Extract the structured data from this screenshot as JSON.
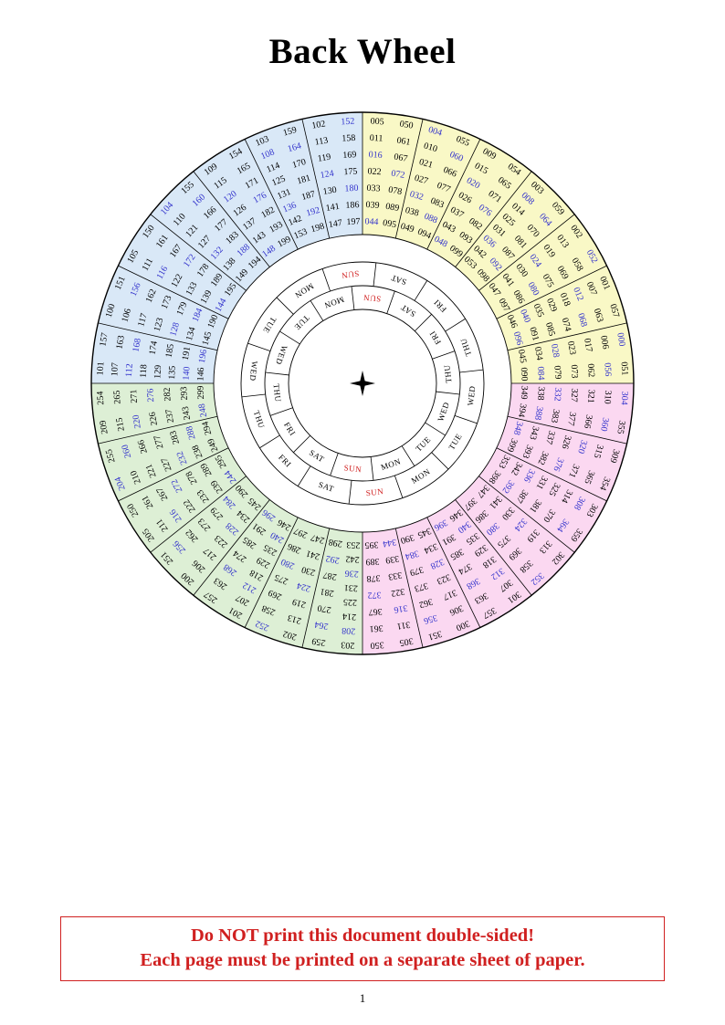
{
  "page": {
    "title": "Back Wheel",
    "page_number": "1",
    "warning_line1": "Do NOT print this document double-sided!",
    "warning_line2": "Each page must be printed on a separate sheet of paper."
  },
  "colors": {
    "quadrant_yellow": "#f9f8c6",
    "quadrant_pink": "#fbd8f1",
    "quadrant_green": "#ddefd5",
    "quadrant_blue": "#d9e8f7",
    "leap_year_text": "#3333cc",
    "common_year_text": "#000000",
    "sunday_text": "#d02020",
    "day_text": "#000000",
    "warning": "#d02020",
    "line": "#000000"
  },
  "wheel": {
    "day_ring_outer": [
      "SUN",
      "SAT",
      "FRI",
      "THU",
      "WED",
      "TUE",
      "MON",
      "SUN",
      "SAT",
      "FRI",
      "THU",
      "WED",
      "TUE",
      "MON"
    ],
    "day_ring_inner": [
      "SUN",
      "SAT",
      "FRI",
      "THU",
      "WED",
      "TUE",
      "MON",
      "SUN",
      "SAT",
      "FRI",
      "THU",
      "WED",
      "TUE",
      "MON"
    ],
    "sectors": [
      {
        "quadrant": "yellow",
        "columns": [
          [
            "005",
            "011",
            "016",
            "022",
            "033",
            "039",
            "044"
          ],
          [
            "050",
            "061",
            "067",
            "072",
            "078",
            "089",
            "095"
          ]
        ]
      },
      {
        "quadrant": "yellow",
        "columns": [
          [
            "004",
            "010",
            "021",
            "027",
            "032",
            "038",
            "049"
          ],
          [
            "055",
            "060",
            "066",
            "077",
            "083",
            "088",
            "094"
          ]
        ]
      },
      {
        "quadrant": "yellow",
        "columns": [
          [
            "009",
            "015",
            "020",
            "026",
            "037",
            "043",
            "048"
          ],
          [
            "054",
            "065",
            "071",
            "076",
            "082",
            "093",
            "099"
          ]
        ]
      },
      {
        "quadrant": "yellow",
        "columns": [
          [
            "003",
            "008",
            "014",
            "025",
            "031",
            "036",
            "042",
            "053"
          ],
          [
            "059",
            "064",
            "070",
            "081",
            "087",
            "092",
            "098"
          ]
        ]
      },
      {
        "quadrant": "yellow",
        "columns": [
          [
            "002",
            "013",
            "019",
            "024",
            "030",
            "041",
            "047"
          ],
          [
            "052",
            "058",
            "069",
            "075",
            "080",
            "086",
            "097"
          ]
        ]
      },
      {
        "quadrant": "yellow",
        "columns": [
          [
            "001",
            "007",
            "012",
            "018",
            "029",
            "035",
            "040",
            "046"
          ],
          [
            "057",
            "063",
            "068",
            "074",
            "085",
            "091",
            "096"
          ]
        ]
      },
      {
        "quadrant": "yellow",
        "columns": [
          [
            "000",
            "006",
            "017",
            "023",
            "028",
            "034",
            "045"
          ],
          [
            "051",
            "056",
            "062",
            "073",
            "079",
            "084",
            "090"
          ]
        ]
      },
      {
        "quadrant": "pink",
        "columns": [
          [
            "304",
            "310",
            "321",
            "327",
            "332",
            "338",
            "349"
          ],
          [
            "355",
            "360",
            "366",
            "377",
            "383",
            "388",
            "394"
          ]
        ]
      },
      {
        "quadrant": "pink",
        "columns": [
          [
            "309",
            "315",
            "320",
            "326",
            "337",
            "343",
            "348"
          ],
          [
            "354",
            "365",
            "371",
            "376",
            "382",
            "393",
            "399"
          ]
        ]
      },
      {
        "quadrant": "pink",
        "columns": [
          [
            "303",
            "308",
            "314",
            "325",
            "331",
            "336",
            "342",
            "353"
          ],
          [
            "359",
            "364",
            "370",
            "381",
            "387",
            "392",
            "398"
          ]
        ]
      },
      {
        "quadrant": "pink",
        "columns": [
          [
            "302",
            "313",
            "319",
            "324",
            "330",
            "341",
            "347"
          ],
          [
            "352",
            "358",
            "369",
            "375",
            "380",
            "386",
            "397"
          ]
        ]
      },
      {
        "quadrant": "pink",
        "columns": [
          [
            "301",
            "307",
            "312",
            "318",
            "329",
            "335",
            "340",
            "346"
          ],
          [
            "357",
            "363",
            "368",
            "374",
            "385",
            "391",
            "396"
          ]
        ]
      },
      {
        "quadrant": "pink",
        "columns": [
          [
            "300",
            "306",
            "317",
            "323",
            "328",
            "334",
            "345"
          ],
          [
            "351",
            "356",
            "362",
            "373",
            "379",
            "384",
            "390"
          ]
        ]
      },
      {
        "quadrant": "pink",
        "columns": [
          [
            "305",
            "311",
            "316",
            "322",
            "333",
            "339",
            "344"
          ],
          [
            "350",
            "361",
            "367",
            "372",
            "378",
            "389",
            "395"
          ]
        ]
      },
      {
        "quadrant": "green",
        "columns": [
          [
            "203",
            "208",
            "214",
            "225",
            "231",
            "236",
            "242",
            "253"
          ],
          [
            "259",
            "264",
            "270",
            "281",
            "287",
            "292",
            "298"
          ]
        ]
      },
      {
        "quadrant": "green",
        "columns": [
          [
            "202",
            "213",
            "219",
            "224",
            "230",
            "241",
            "247"
          ],
          [
            "252",
            "258",
            "269",
            "275",
            "280",
            "286",
            "297"
          ]
        ]
      },
      {
        "quadrant": "green",
        "columns": [
          [
            "201",
            "207",
            "212",
            "218",
            "229",
            "235",
            "240",
            "246"
          ],
          [
            "257",
            "263",
            "268",
            "274",
            "285",
            "291",
            "296"
          ]
        ]
      },
      {
        "quadrant": "green",
        "columns": [
          [
            "200",
            "206",
            "217",
            "223",
            "228",
            "234",
            "245"
          ],
          [
            "251",
            "256",
            "262",
            "273",
            "279",
            "284",
            "290"
          ]
        ]
      },
      {
        "quadrant": "green",
        "columns": [
          [
            "205",
            "211",
            "216",
            "222",
            "233",
            "239",
            "244"
          ],
          [
            "250",
            "261",
            "267",
            "272",
            "278",
            "289",
            "295"
          ]
        ]
      },
      {
        "quadrant": "green",
        "columns": [
          [
            "204",
            "210",
            "221",
            "227",
            "232",
            "238",
            "249"
          ],
          [
            "255",
            "260",
            "266",
            "277",
            "283",
            "288",
            "294"
          ]
        ]
      },
      {
        "quadrant": "green",
        "columns": [
          [
            "209",
            "215",
            "220",
            "226",
            "237",
            "243",
            "248"
          ],
          [
            "254",
            "265",
            "271",
            "276",
            "282",
            "293",
            "299"
          ]
        ]
      },
      {
        "quadrant": "blue",
        "columns": [
          [
            "101",
            "107",
            "112",
            "118",
            "129",
            "135",
            "140",
            "146"
          ],
          [
            "157",
            "163",
            "168",
            "174",
            "185",
            "191",
            "196"
          ]
        ]
      },
      {
        "quadrant": "blue",
        "columns": [
          [
            "100",
            "106",
            "117",
            "123",
            "128",
            "134",
            "145"
          ],
          [
            "151",
            "156",
            "162",
            "173",
            "179",
            "184",
            "190"
          ]
        ]
      },
      {
        "quadrant": "blue",
        "columns": [
          [
            "105",
            "111",
            "116",
            "122",
            "133",
            "139",
            "144"
          ],
          [
            "150",
            "161",
            "167",
            "172",
            "178",
            "189",
            "195"
          ]
        ]
      },
      {
        "quadrant": "blue",
        "columns": [
          [
            "104",
            "110",
            "121",
            "127",
            "132",
            "138",
            "149"
          ],
          [
            "155",
            "160",
            "166",
            "177",
            "183",
            "188",
            "194"
          ]
        ]
      },
      {
        "quadrant": "blue",
        "columns": [
          [
            "109",
            "115",
            "120",
            "126",
            "137",
            "143",
            "148"
          ],
          [
            "154",
            "165",
            "171",
            "176",
            "182",
            "193",
            "199"
          ]
        ]
      },
      {
        "quadrant": "blue",
        "columns": [
          [
            "103",
            "108",
            "114",
            "125",
            "131",
            "136",
            "142",
            "153"
          ],
          [
            "159",
            "164",
            "170",
            "181",
            "187",
            "192",
            "198"
          ]
        ]
      },
      {
        "quadrant": "blue",
        "columns": [
          [
            "102",
            "113",
            "119",
            "124",
            "130",
            "141",
            "147"
          ],
          [
            "152",
            "158",
            "169",
            "175",
            "180",
            "186",
            "197"
          ]
        ]
      }
    ]
  }
}
